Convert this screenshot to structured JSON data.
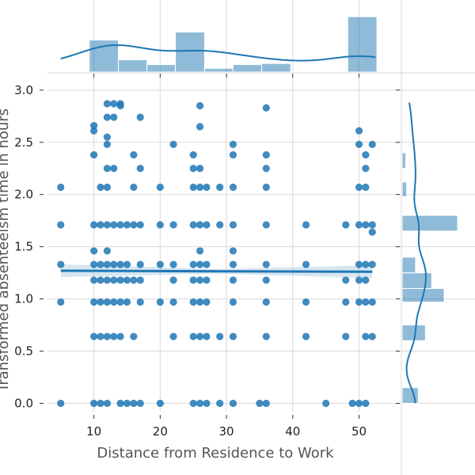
{
  "chart_data": {
    "type": "scatter",
    "xlabel": "Distance from Residence to Work",
    "ylabel": "Transformed absenteeism time in hours",
    "xlim": [
      3,
      54
    ],
    "ylim": [
      -0.08,
      3.12
    ],
    "x_ticks": [
      10,
      20,
      30,
      40,
      50
    ],
    "y_ticks": [
      0.0,
      0.5,
      1.0,
      1.5,
      2.0,
      2.5,
      3.0
    ],
    "x_tick_labels": [
      "10",
      "20",
      "30",
      "40",
      "50"
    ],
    "y_tick_labels": [
      "0.0",
      "0.5",
      "1.0",
      "1.5",
      "2.0",
      "2.5",
      "3.0"
    ],
    "grid": true,
    "color": "#1f77b4",
    "regression_line": {
      "x": [
        5,
        52
      ],
      "y": [
        1.27,
        1.26
      ]
    },
    "points": [
      [
        5,
        0
      ],
      [
        11,
        0
      ],
      [
        10,
        0
      ],
      [
        12,
        0
      ],
      [
        14,
        0
      ],
      [
        15,
        0
      ],
      [
        16,
        0
      ],
      [
        17,
        0
      ],
      [
        20,
        0
      ],
      [
        25,
        0
      ],
      [
        26,
        0
      ],
      [
        27,
        0
      ],
      [
        29,
        0
      ],
      [
        31,
        0
      ],
      [
        35,
        0
      ],
      [
        36,
        0
      ],
      [
        45,
        0
      ],
      [
        49,
        0
      ],
      [
        50,
        0
      ],
      [
        51,
        0
      ],
      [
        10,
        0.64
      ],
      [
        11,
        0.64
      ],
      [
        12,
        0.64
      ],
      [
        13,
        0.64
      ],
      [
        14,
        0.64
      ],
      [
        16,
        0.64
      ],
      [
        22,
        0.64
      ],
      [
        25,
        0.64
      ],
      [
        26,
        0.64
      ],
      [
        27,
        0.64
      ],
      [
        29,
        0.64
      ],
      [
        31,
        0.64
      ],
      [
        36,
        0.64
      ],
      [
        42,
        0.64
      ],
      [
        48,
        0.64
      ],
      [
        51,
        0.64
      ],
      [
        52,
        0.64
      ],
      [
        5,
        0.97
      ],
      [
        10,
        0.97
      ],
      [
        11,
        0.97
      ],
      [
        12,
        0.97
      ],
      [
        13,
        0.97
      ],
      [
        14,
        0.97
      ],
      [
        15,
        0.97
      ],
      [
        17,
        0.97
      ],
      [
        20,
        0.97
      ],
      [
        22,
        0.97
      ],
      [
        25,
        0.97
      ],
      [
        26,
        0.97
      ],
      [
        27,
        0.97
      ],
      [
        31,
        0.97
      ],
      [
        36,
        0.97
      ],
      [
        42,
        0.97
      ],
      [
        48,
        0.97
      ],
      [
        50,
        0.97
      ],
      [
        51,
        0.97
      ],
      [
        52,
        0.97
      ],
      [
        10,
        1.18
      ],
      [
        11,
        1.18
      ],
      [
        12,
        1.18
      ],
      [
        13,
        1.18
      ],
      [
        14,
        1.18
      ],
      [
        15,
        1.18
      ],
      [
        16,
        1.18
      ],
      [
        17,
        1.18
      ],
      [
        22,
        1.18
      ],
      [
        25,
        1.18
      ],
      [
        26,
        1.18
      ],
      [
        27,
        1.18
      ],
      [
        31,
        1.18
      ],
      [
        36,
        1.18
      ],
      [
        48,
        1.18
      ],
      [
        50,
        1.18
      ],
      [
        51,
        1.18
      ],
      [
        5,
        1.33
      ],
      [
        10,
        1.33
      ],
      [
        11,
        1.33
      ],
      [
        12,
        1.33
      ],
      [
        13,
        1.33
      ],
      [
        14,
        1.33
      ],
      [
        15,
        1.33
      ],
      [
        17,
        1.33
      ],
      [
        20,
        1.33
      ],
      [
        22,
        1.33
      ],
      [
        25,
        1.33
      ],
      [
        26,
        1.33
      ],
      [
        27,
        1.33
      ],
      [
        31,
        1.33
      ],
      [
        36,
        1.33
      ],
      [
        42,
        1.33
      ],
      [
        50,
        1.33
      ],
      [
        51,
        1.33
      ],
      [
        52,
        1.33
      ],
      [
        10,
        1.46
      ],
      [
        12,
        1.46
      ],
      [
        26,
        1.46
      ],
      [
        31,
        1.46
      ],
      [
        5,
        1.71
      ],
      [
        10,
        1.71
      ],
      [
        11,
        1.71
      ],
      [
        12,
        1.71
      ],
      [
        13,
        1.71
      ],
      [
        14,
        1.71
      ],
      [
        15,
        1.71
      ],
      [
        16,
        1.71
      ],
      [
        17,
        1.71
      ],
      [
        20,
        1.71
      ],
      [
        22,
        1.71
      ],
      [
        25,
        1.71
      ],
      [
        26,
        1.71
      ],
      [
        27,
        1.71
      ],
      [
        29,
        1.71
      ],
      [
        31,
        1.71
      ],
      [
        36,
        1.71
      ],
      [
        42,
        1.71
      ],
      [
        48,
        1.71
      ],
      [
        50,
        1.71
      ],
      [
        51,
        1.71
      ],
      [
        52,
        1.71
      ],
      [
        52,
        1.64
      ],
      [
        5,
        2.07
      ],
      [
        11,
        2.07
      ],
      [
        12,
        2.07
      ],
      [
        16,
        2.07
      ],
      [
        20,
        2.07
      ],
      [
        25,
        2.07
      ],
      [
        26,
        2.07
      ],
      [
        27,
        2.07
      ],
      [
        29,
        2.07
      ],
      [
        31,
        2.07
      ],
      [
        36,
        2.07
      ],
      [
        50,
        2.07
      ],
      [
        51,
        2.07
      ],
      [
        12,
        2.25
      ],
      [
        13,
        2.25
      ],
      [
        17,
        2.25
      ],
      [
        25,
        2.25
      ],
      [
        26,
        2.25
      ],
      [
        36,
        2.25
      ],
      [
        51,
        2.25
      ],
      [
        10,
        2.38
      ],
      [
        16,
        2.38
      ],
      [
        25,
        2.38
      ],
      [
        31,
        2.38
      ],
      [
        36,
        2.38
      ],
      [
        51,
        2.38
      ],
      [
        12,
        2.48
      ],
      [
        22,
        2.48
      ],
      [
        31,
        2.48
      ],
      [
        50,
        2.48
      ],
      [
        52,
        2.48
      ],
      [
        12,
        2.55
      ],
      [
        26,
        2.65
      ],
      [
        10,
        2.61
      ],
      [
        10,
        2.66
      ],
      [
        50,
        2.61
      ],
      [
        12,
        2.74
      ],
      [
        13,
        2.74
      ],
      [
        17,
        2.74
      ],
      [
        12,
        2.87
      ],
      [
        13,
        2.87
      ],
      [
        14,
        2.87
      ],
      [
        14,
        2.85
      ],
      [
        26,
        2.85
      ],
      [
        36,
        2.83
      ]
    ],
    "x_marginal": {
      "bin_edges": [
        5,
        9.3,
        13.7,
        18.0,
        22.3,
        26.7,
        31.0,
        35.3,
        39.7,
        44.0,
        48.3,
        52.7
      ],
      "counts": [
        1,
        60,
        23,
        14,
        75,
        7,
        14,
        16,
        1,
        0,
        104
      ]
    },
    "y_marginal": {
      "bins": [
        {
          "from": 0.0,
          "to": 0.15,
          "count": 18
        },
        {
          "from": 0.6,
          "to": 0.75,
          "count": 26
        },
        {
          "from": 0.97,
          "to": 1.1,
          "count": 47
        },
        {
          "from": 1.1,
          "to": 1.25,
          "count": 33
        },
        {
          "from": 1.25,
          "to": 1.4,
          "count": 15
        },
        {
          "from": 1.65,
          "to": 1.8,
          "count": 62
        },
        {
          "from": 1.98,
          "to": 2.12,
          "count": 5
        },
        {
          "from": 2.25,
          "to": 2.4,
          "count": 4
        }
      ]
    }
  }
}
